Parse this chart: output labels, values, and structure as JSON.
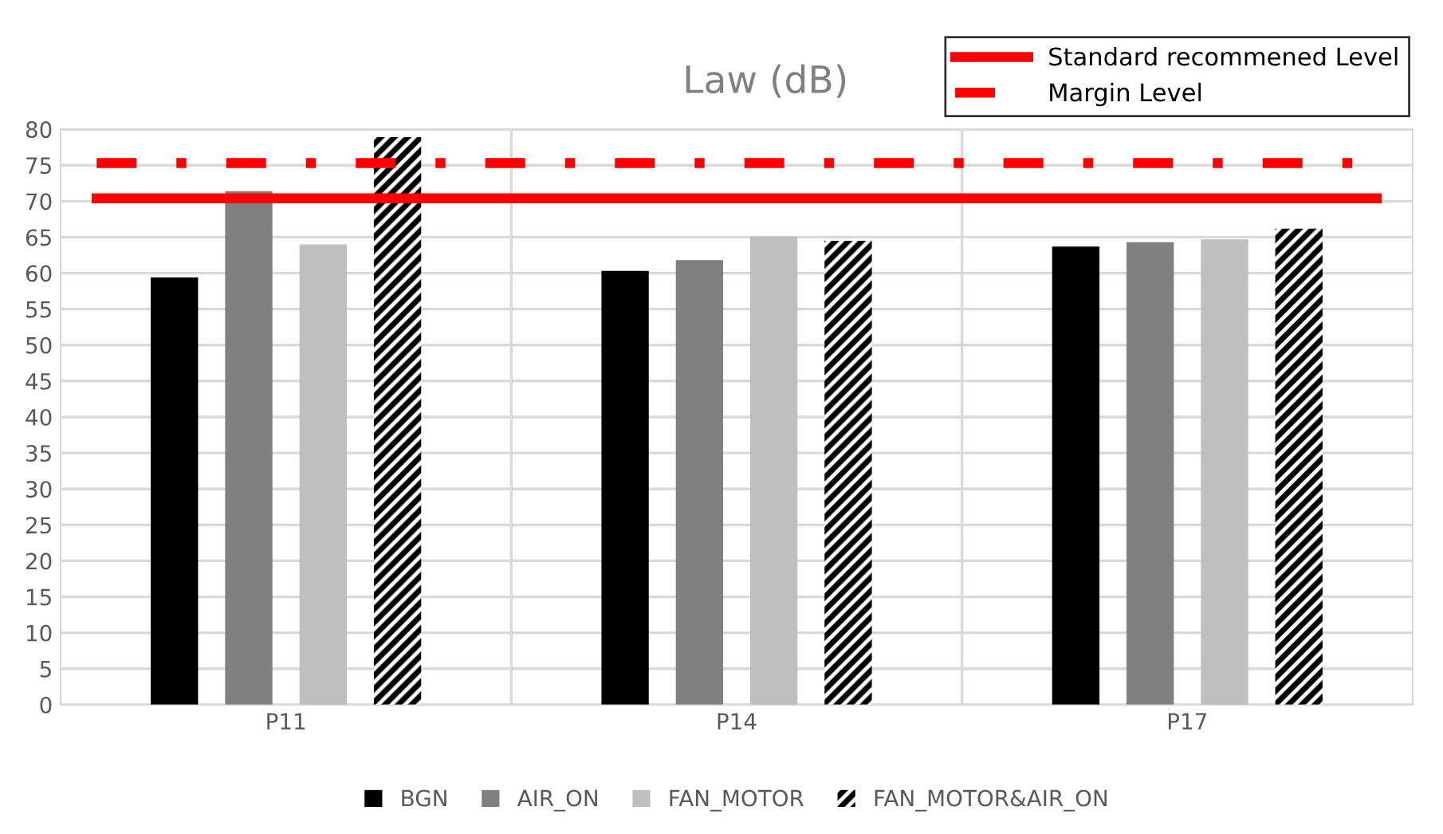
{
  "chart_data": {
    "type": "bar",
    "title": "Law (dB)",
    "categories": [
      "P11",
      "P14",
      "P17"
    ],
    "series": [
      {
        "name": "BGN",
        "color": "#000000",
        "values": [
          59.4,
          60.3,
          63.7
        ]
      },
      {
        "name": "AIR_ON",
        "color": "#808080",
        "values": [
          71.4,
          61.8,
          64.3
        ]
      },
      {
        "name": "FAN_MOTOR",
        "color": "#bfbfbf",
        "values": [
          64.0,
          65.1,
          64.7
        ]
      },
      {
        "name": "FAN_MOTOR&AIR_ON",
        "color": "#000000",
        "values": [
          78.9,
          64.5,
          66.2
        ]
      }
    ],
    "ylim": [
      0,
      80
    ],
    "yticks": [
      0,
      5,
      10,
      15,
      20,
      25,
      30,
      35,
      40,
      45,
      50,
      55,
      60,
      65,
      70,
      75,
      80
    ],
    "grid": true,
    "legend": "bottom",
    "ref_lines": [
      {
        "axis": "y",
        "value": 70.4,
        "label": "Standard recommened Level",
        "color": "#ff0000",
        "line_style": "solid"
      },
      {
        "axis": "y",
        "value": 75.3,
        "label": "Margin Level",
        "color": "#ff0000",
        "line_style": "dashdot"
      }
    ]
  }
}
